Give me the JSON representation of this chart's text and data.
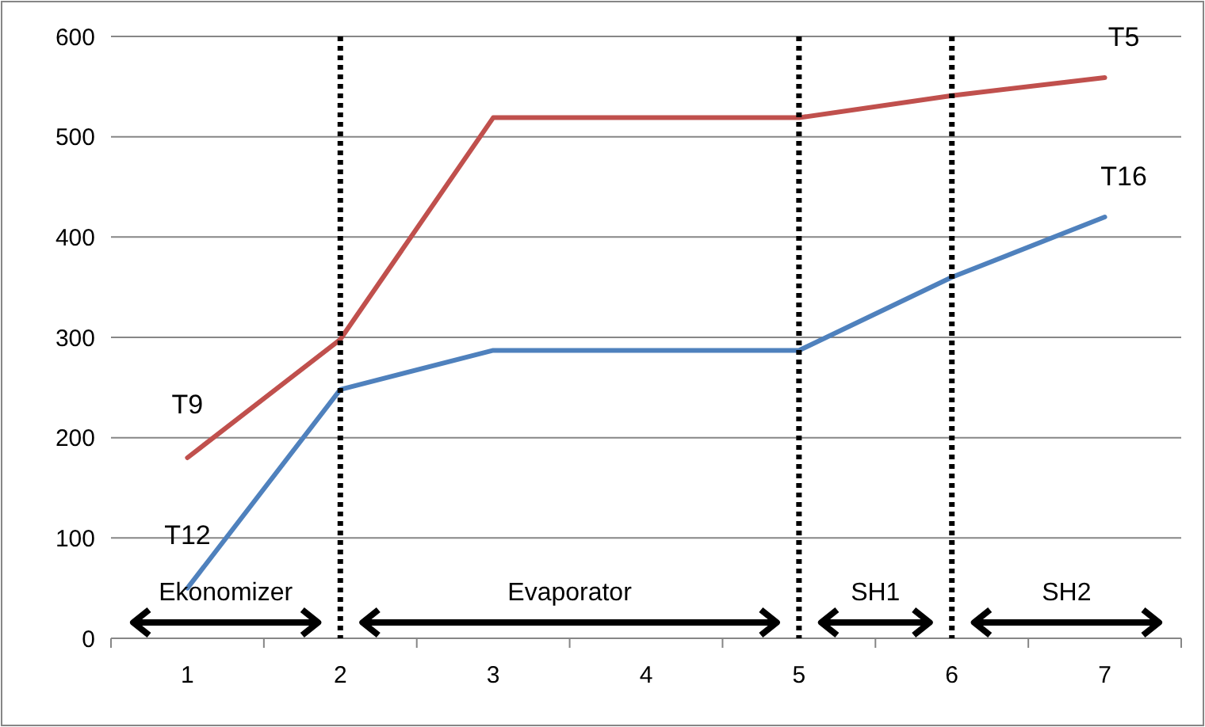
{
  "chart_data": {
    "type": "line",
    "categories": [
      "1",
      "2",
      "3",
      "4",
      "5",
      "6",
      "7"
    ],
    "series": [
      {
        "color": "#c0504d",
        "values": [
          180,
          298,
          519,
          519,
          519,
          541,
          559
        ]
      },
      {
        "color": "#4f81bd",
        "values": [
          50,
          248,
          287,
          287,
          287,
          360,
          420
        ]
      }
    ],
    "ylim": [
      0,
      600
    ],
    "yticks": [
      0,
      100,
      200,
      300,
      400,
      500,
      600
    ],
    "grid": "y",
    "marker": "none",
    "line_style": "solid",
    "ref_lines": [
      {
        "axis": "x",
        "value": "2",
        "color": "#000000",
        "line_style": "dotted"
      },
      {
        "axis": "x",
        "value": "5",
        "color": "#000000",
        "line_style": "dotted"
      },
      {
        "axis": "x",
        "value": "6",
        "color": "#000000",
        "line_style": "dotted"
      }
    ],
    "annotations": [
      {
        "text": "T9",
        "x": "1",
        "y": 180
      },
      {
        "text": "T12",
        "x": "1",
        "y": 50
      },
      {
        "text": "T5",
        "x": "7",
        "y": 559
      },
      {
        "text": "T16",
        "x": "7",
        "y": 420
      },
      "Ekonomizer",
      "Evaporator",
      "SH1",
      "SH2"
    ]
  }
}
